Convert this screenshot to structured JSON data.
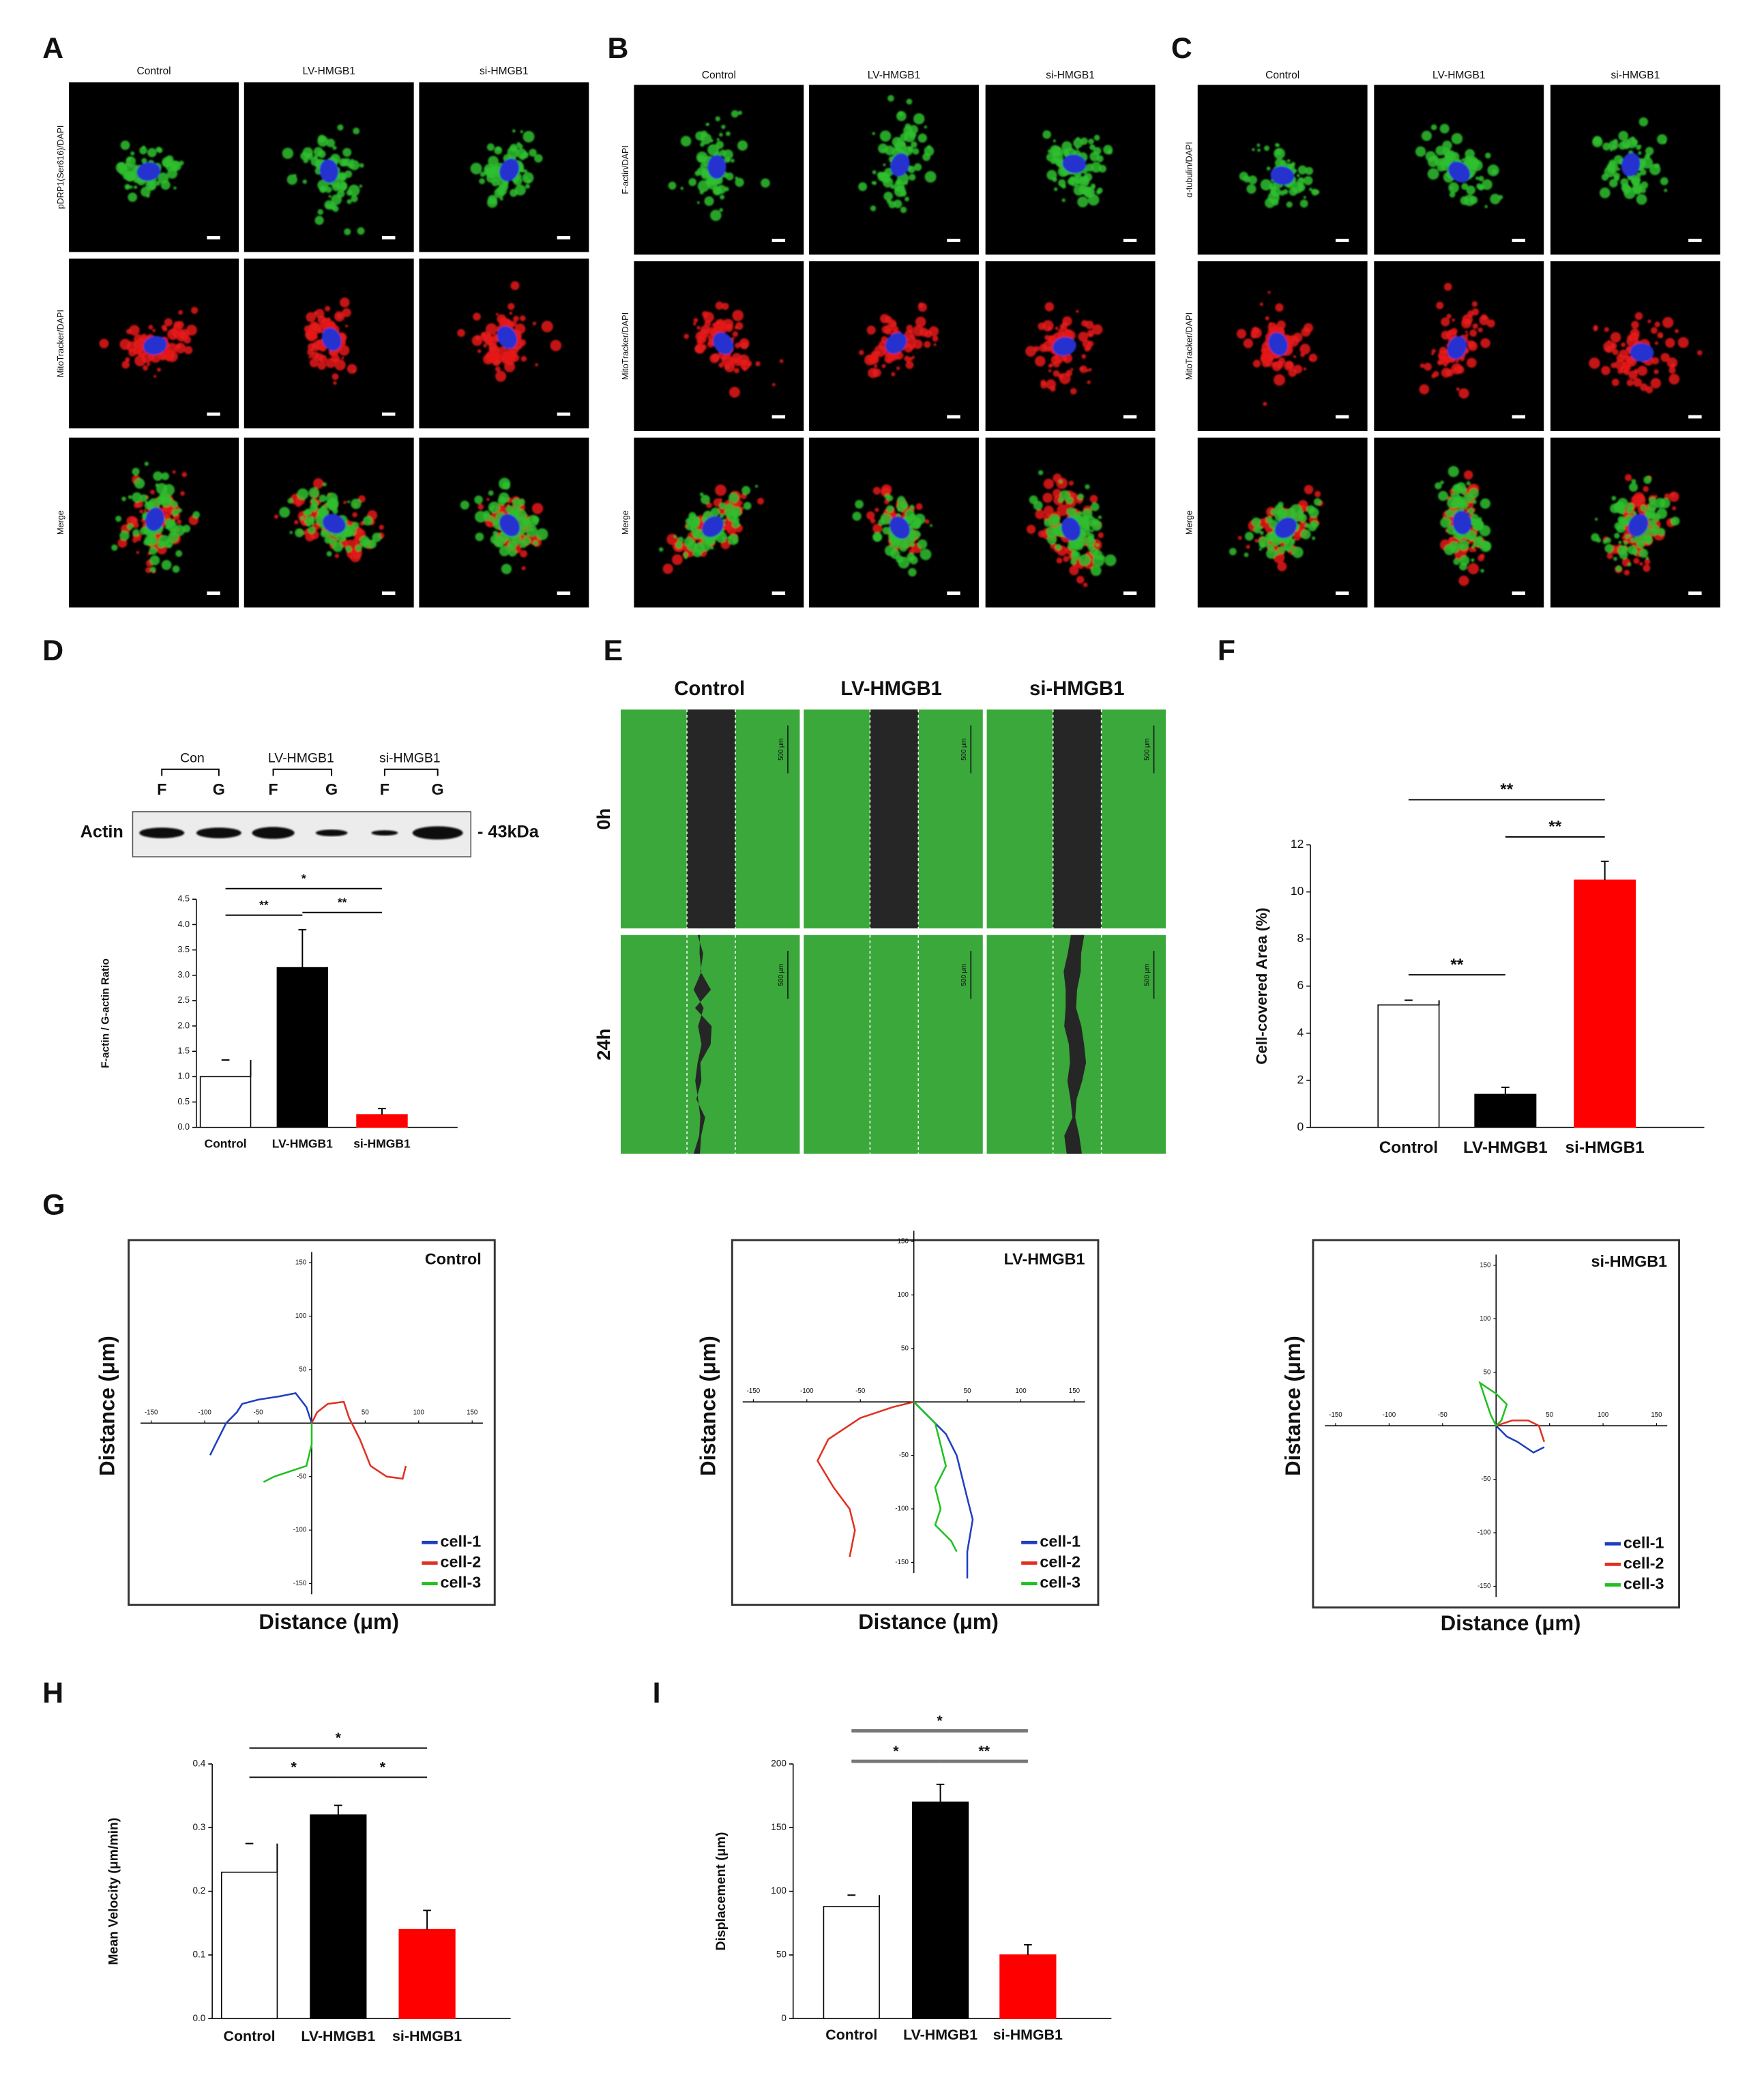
{
  "panel_A": {
    "letter": "A",
    "columns": [
      "Control",
      "LV-HMGB1",
      "si-HMGB1"
    ],
    "rows": [
      "pDRP1(Ser616)/DAPI",
      "MitoTracker/DAPI",
      "Merge"
    ]
  },
  "panel_B": {
    "letter": "B",
    "columns": [
      "Control",
      "LV-HMGB1",
      "si-HMGB1"
    ],
    "rows": [
      "F-actin/DAPI",
      "MitoTracker/DAPI",
      "Merge"
    ]
  },
  "panel_C": {
    "letter": "C",
    "columns": [
      "Control",
      "LV-HMGB1",
      "si-HMGB1"
    ],
    "rows": [
      "α-tubulin/DAPI",
      "MitoTracker/DAPI",
      "Merge"
    ]
  },
  "panel_D": {
    "letter": "D",
    "blot": {
      "groups": [
        "Con",
        "LV-HMGB1",
        "si-HMGB1"
      ],
      "lanes": [
        "F",
        "G",
        "F",
        "G",
        "F",
        "G"
      ],
      "protein": "Actin",
      "marker": "- 43kDa"
    },
    "chart": {
      "type": "bar",
      "ylabel": "F-actin / G-actin Ratio",
      "categories": [
        "Control",
        "LV-HMGB1",
        "si-HMGB1"
      ],
      "values": [
        1.0,
        3.15,
        0.25
      ],
      "errors": [
        0.33,
        0.75,
        0.12
      ],
      "colors": [
        "#ffffff",
        "#000000",
        "#ff0000"
      ],
      "ylim": [
        0,
        4.5
      ],
      "yticks": [
        {
          "value": 0,
          "label": "0.0"
        },
        0.5,
        {
          "value": 1,
          "label": "1.0"
        },
        1.5,
        {
          "value": 2,
          "label": "2.0"
        },
        2.5,
        {
          "value": 3,
          "label": "3.0"
        },
        3.5,
        {
          "value": 4,
          "label": "4.0"
        },
        4.5
      ],
      "significance": [
        {
          "from": 0,
          "to": 2,
          "label": "*"
        },
        {
          "from": 0,
          "to": 1,
          "label": "**"
        },
        {
          "from": 1,
          "to": 2,
          "label": "**"
        }
      ]
    }
  },
  "panel_E": {
    "letter": "E",
    "columns": [
      "Control",
      "LV-HMGB1",
      "si-HMGB1"
    ],
    "rows": [
      "0h",
      "24h"
    ],
    "scale_bar": "500 μm"
  },
  "panel_F": {
    "letter": "F",
    "chart": {
      "type": "bar",
      "ylabel": "Cell-covered Area (%)",
      "categories": [
        "Control",
        "LV-HMGB1",
        "si-HMGB1"
      ],
      "values": [
        5.2,
        1.4,
        10.5
      ],
      "errors": [
        0.2,
        0.3,
        0.8
      ],
      "colors": [
        "#ffffff",
        "#000000",
        "#ff0000"
      ],
      "ylim": [
        0,
        12
      ],
      "yticks": [
        0,
        2,
        4,
        6,
        8,
        10,
        12
      ],
      "significance": [
        {
          "from": 0,
          "to": 1,
          "label": "**"
        },
        {
          "from": 1,
          "to": 2,
          "label": "**"
        },
        {
          "from": 0,
          "to": 2,
          "label": "**"
        }
      ]
    }
  },
  "panel_G": {
    "letter": "G",
    "charts": [
      {
        "type": "line",
        "title": "Control",
        "xlabel": "Distance (μm)",
        "ylabel": "Distance (μm)",
        "xlim": [
          -160,
          160
        ],
        "ylim": [
          -160,
          160
        ],
        "xticks": [
          -150,
          -100,
          -50,
          50,
          100,
          150
        ],
        "yticks": [
          -150,
          -100,
          -50,
          50,
          100,
          150
        ],
        "series": [
          {
            "name": "cell-1",
            "color": "#1f3fbf",
            "x": [
              0,
              -5,
              -15,
              -30,
              -50,
              -65,
              -70,
              -80,
              -90,
              -95
            ],
            "y": [
              0,
              15,
              28,
              25,
              22,
              18,
              10,
              0,
              -20,
              -30
            ]
          },
          {
            "name": "cell-2",
            "color": "#e03020",
            "x": [
              0,
              5,
              15,
              30,
              35,
              45,
              55,
              70,
              85,
              88
            ],
            "y": [
              0,
              10,
              18,
              20,
              5,
              -15,
              -40,
              -50,
              -52,
              -40
            ]
          },
          {
            "name": "cell-3",
            "color": "#20c020",
            "x": [
              0,
              0,
              -5,
              -20,
              -35,
              -45
            ],
            "y": [
              0,
              -20,
              -40,
              -45,
              -50,
              -55
            ]
          }
        ]
      },
      {
        "type": "line",
        "title": "LV-HMGB1",
        "xlabel": "Distance (μm)",
        "ylabel": "Distance (μm)",
        "xlim": [
          -160,
          160
        ],
        "ylim": [
          -160,
          160
        ],
        "xticks": [
          -150,
          -100,
          -50,
          50,
          100,
          150
        ],
        "yticks": [
          -150,
          -100,
          -50,
          50,
          100,
          150
        ],
        "series": [
          {
            "name": "cell-1",
            "color": "#1f3fbf",
            "x": [
              0,
              15,
              30,
              40,
              50,
              55,
              50,
              50
            ],
            "y": [
              0,
              -15,
              -30,
              -50,
              -90,
              -110,
              -140,
              -165
            ]
          },
          {
            "name": "cell-2",
            "color": "#e03020",
            "x": [
              0,
              -20,
              -50,
              -80,
              -90,
              -75,
              -60,
              -55,
              -60
            ],
            "y": [
              0,
              -5,
              -15,
              -35,
              -55,
              -80,
              -100,
              -120,
              -145
            ]
          },
          {
            "name": "cell-3",
            "color": "#20c020",
            "x": [
              0,
              20,
              25,
              30,
              20,
              25,
              20,
              35,
              40
            ],
            "y": [
              0,
              -20,
              -40,
              -60,
              -80,
              -100,
              -115,
              -130,
              -140
            ]
          }
        ]
      },
      {
        "type": "line",
        "title": "si-HMGB1",
        "xlabel": "Distance (μm)",
        "ylabel": "Distance (μm)",
        "xlim": [
          -160,
          160
        ],
        "ylim": [
          -160,
          160
        ],
        "xticks": [
          -150,
          -100,
          -50,
          50,
          100,
          150
        ],
        "yticks": [
          -150,
          -100,
          -50,
          50,
          100,
          150
        ],
        "series": [
          {
            "name": "cell-1",
            "color": "#1f3fbf",
            "x": [
              0,
              10,
              20,
              35,
              45
            ],
            "y": [
              0,
              -10,
              -15,
              -25,
              -20
            ]
          },
          {
            "name": "cell-2",
            "color": "#e03020",
            "x": [
              0,
              15,
              30,
              40,
              45
            ],
            "y": [
              0,
              5,
              5,
              0,
              -15
            ]
          },
          {
            "name": "cell-3",
            "color": "#20c020",
            "x": [
              0,
              -5,
              -10,
              -15,
              0,
              10,
              5,
              0
            ],
            "y": [
              0,
              10,
              25,
              40,
              30,
              20,
              5,
              0
            ]
          }
        ]
      }
    ]
  },
  "panel_H": {
    "letter": "H",
    "chart": {
      "type": "bar",
      "ylabel": "Mean Velocity (μm/min)",
      "categories": [
        "Control",
        "LV-HMGB1",
        "si-HMGB1"
      ],
      "values": [
        0.23,
        0.32,
        0.14
      ],
      "errors": [
        0.045,
        0.015,
        0.03
      ],
      "colors": [
        "#ffffff",
        "#000000",
        "#ff0000"
      ],
      "ylim": [
        0,
        0.4
      ],
      "yticks": [
        {
          "value": 0,
          "label": "0.0"
        },
        0.1,
        0.2,
        0.3,
        0.4
      ],
      "significance": [
        {
          "from": 0,
          "to": 2,
          "label": "*"
        },
        {
          "from": 0,
          "to": 1,
          "label": "*"
        },
        {
          "from": 1,
          "to": 2,
          "label": "*"
        }
      ]
    }
  },
  "panel_I": {
    "letter": "I",
    "chart": {
      "type": "bar",
      "ylabel": "Displacement (μm)",
      "categories": [
        "Control",
        "LV-HMGB1",
        "si-HMGB1"
      ],
      "values": [
        88,
        170,
        50
      ],
      "errors": [
        9,
        14,
        8
      ],
      "colors": [
        "#ffffff",
        "#000000",
        "#ff0000"
      ],
      "ylim": [
        0,
        200
      ],
      "yticks": [
        0,
        50,
        100,
        150,
        200
      ],
      "significance": [
        {
          "from": 0,
          "to": 2,
          "label": "*"
        },
        {
          "from": 0,
          "to": 1,
          "label": "*"
        },
        {
          "from": 1,
          "to": 2,
          "label": "**"
        }
      ]
    }
  }
}
